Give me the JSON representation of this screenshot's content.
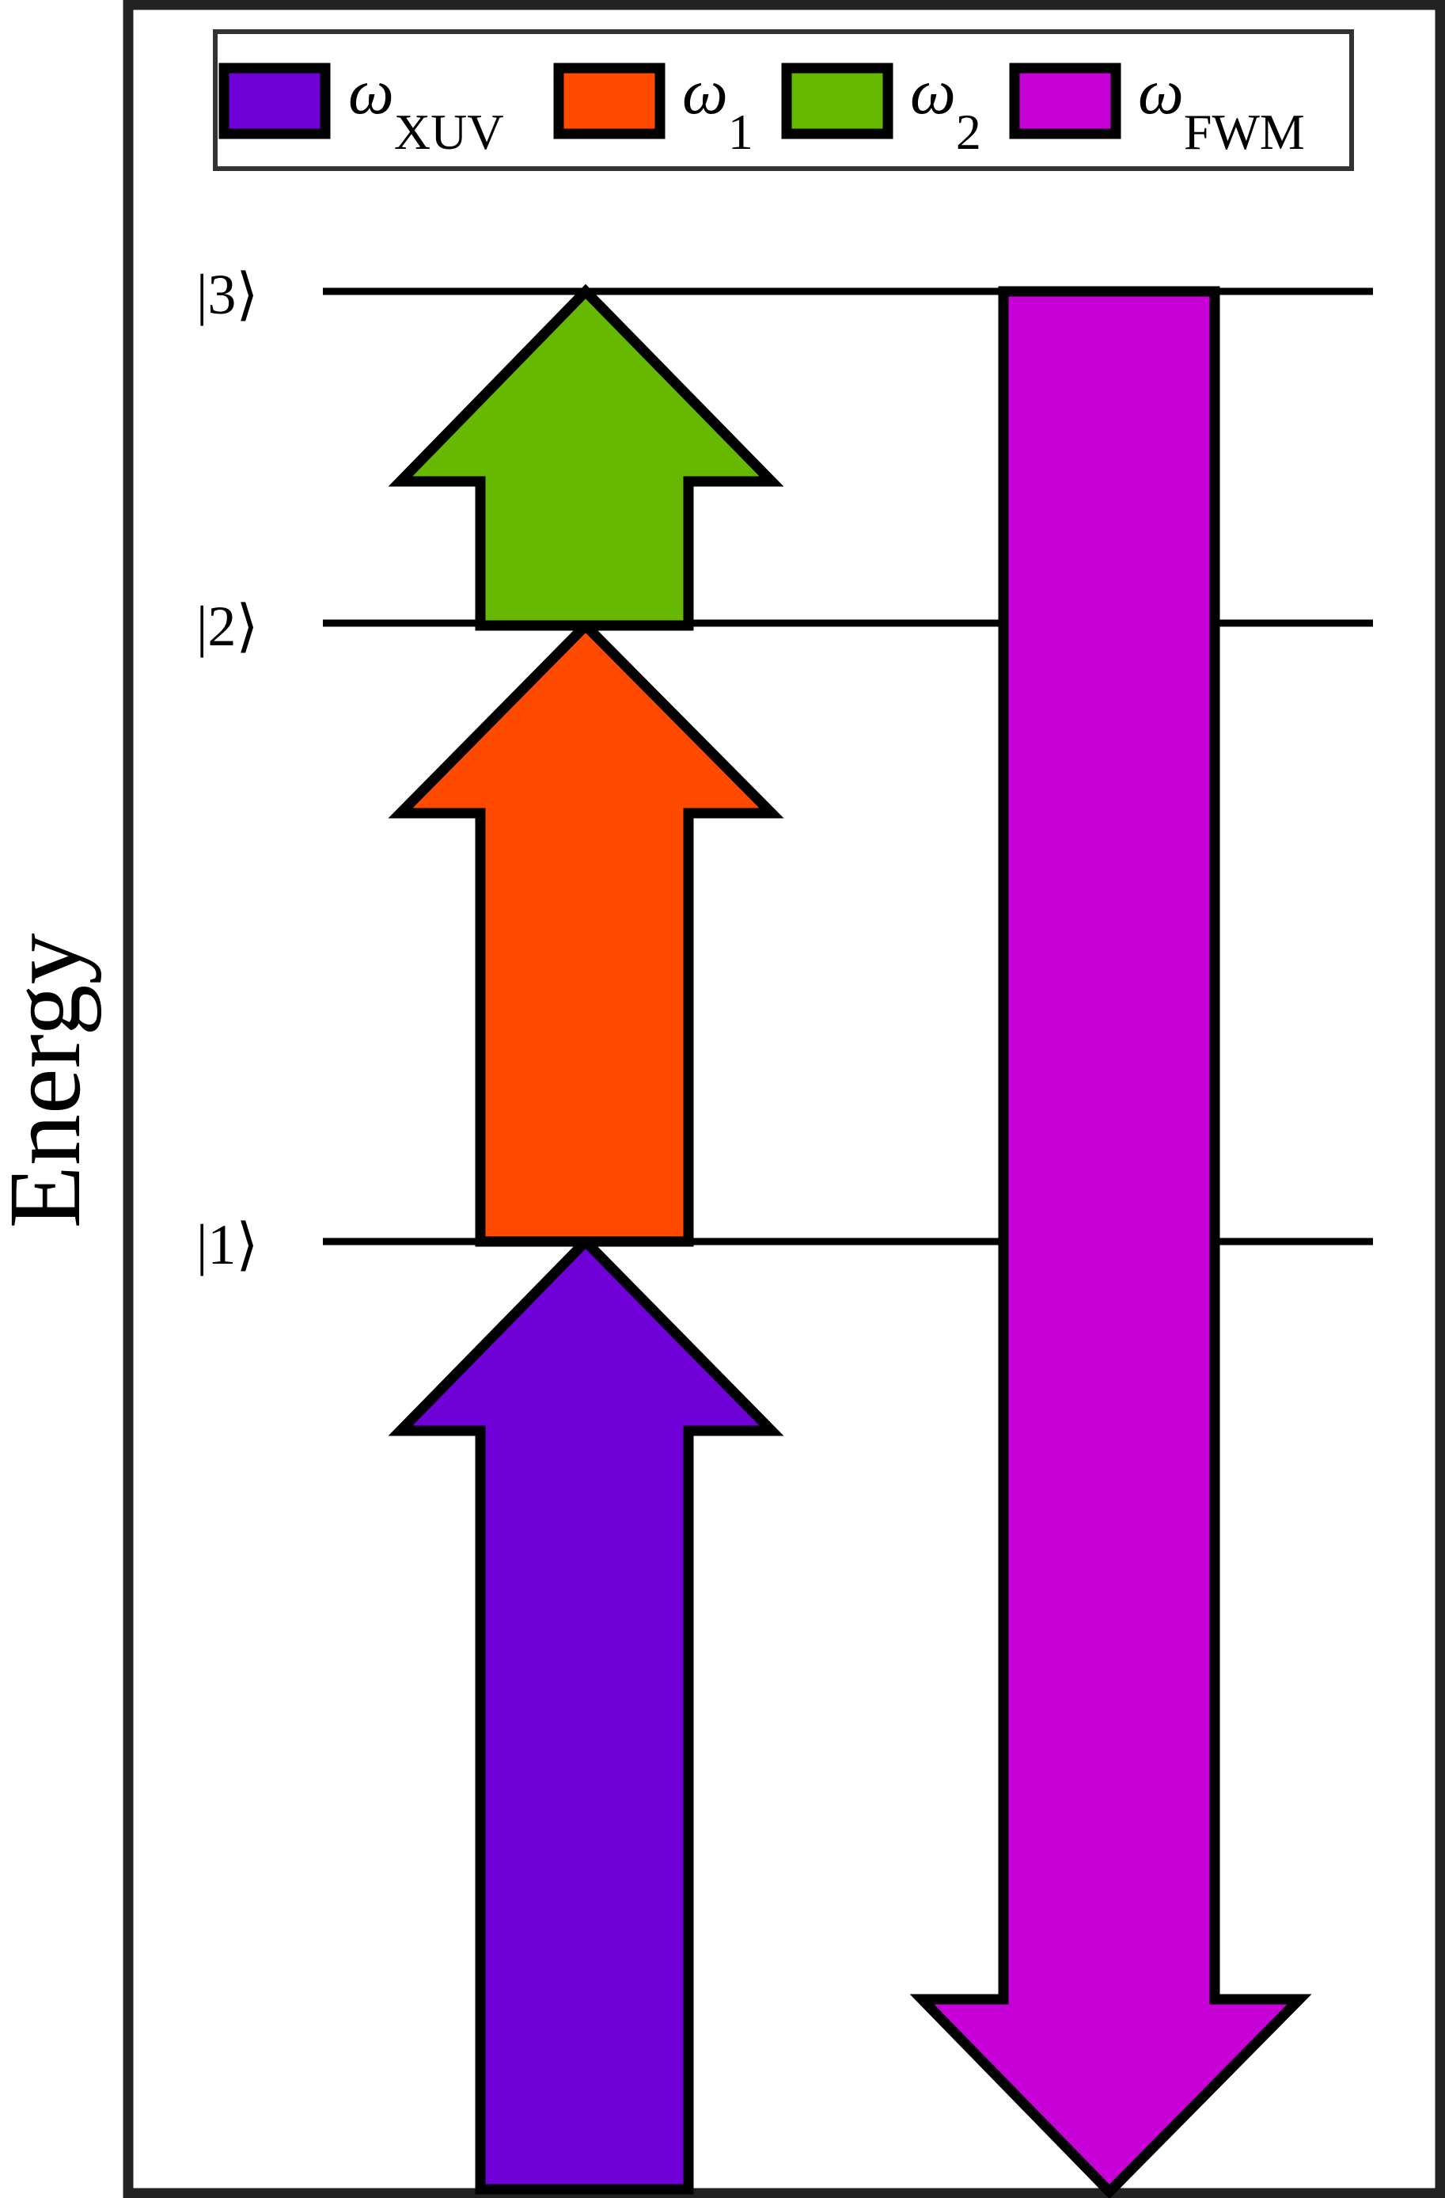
{
  "axis": {
    "ylabel": "Energy"
  },
  "legend": {
    "items": [
      {
        "symbol": "ω",
        "subscript": "XUV",
        "color": "#6F00D8"
      },
      {
        "symbol": "ω",
        "subscript": "1",
        "color": "#FF4A00"
      },
      {
        "symbol": "ω",
        "subscript": "2",
        "color": "#66B800"
      },
      {
        "symbol": "ω",
        "subscript": "FWM",
        "color": "#C800D8"
      }
    ]
  },
  "levels": [
    {
      "label": "|3⟩"
    },
    {
      "label": "|2⟩"
    },
    {
      "label": "|1⟩"
    }
  ],
  "transitions": [
    {
      "name": "xuv-arrow",
      "direction": "up",
      "from": "ground",
      "to": "|1⟩",
      "color": "#6F00D8"
    },
    {
      "name": "omega1-arrow",
      "direction": "up",
      "from": "|1⟩",
      "to": "|2⟩",
      "color": "#FF4A00"
    },
    {
      "name": "omega2-arrow",
      "direction": "up",
      "from": "|2⟩",
      "to": "|3⟩",
      "color": "#66B800"
    },
    {
      "name": "fwm-arrow",
      "direction": "down",
      "from": "|3⟩",
      "to": "ground",
      "color": "#C800D8"
    }
  ],
  "colors": {
    "outline": "#000000",
    "frame": "#222222",
    "legend_border": "#333333"
  }
}
